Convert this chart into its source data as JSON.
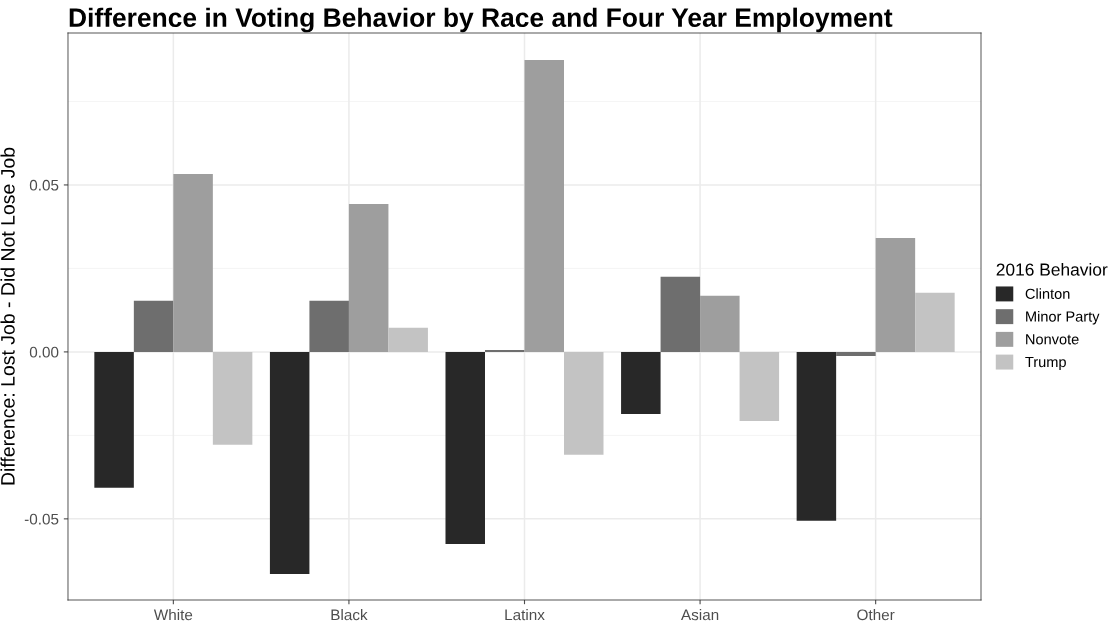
{
  "chart_data": {
    "type": "bar",
    "title": "Difference in Voting Behavior by Race and Four Year Employment",
    "ylabel": "Difference: Lost Job - Did Not Lose Job",
    "legend_title": "2016 Behavior",
    "categories": [
      "White",
      "Black",
      "Latinx",
      "Asian",
      "Other"
    ],
    "series": [
      {
        "name": "Clinton",
        "color": "#282828",
        "values": [
          -0.0407,
          -0.0665,
          -0.0575,
          -0.0186,
          -0.0506
        ]
      },
      {
        "name": "Minor Party",
        "color": "#6e6e6e",
        "values": [
          0.0153,
          0.0153,
          0.0006,
          0.0225,
          -0.0012
        ]
      },
      {
        "name": "Nonvote",
        "color": "#9e9e9e",
        "values": [
          0.0533,
          0.0443,
          0.0874,
          0.0168,
          0.0341
        ]
      },
      {
        "name": "Trump",
        "color": "#c3c3c3",
        "values": [
          -0.0278,
          0.0072,
          -0.0308,
          -0.0207,
          0.0177
        ]
      }
    ],
    "ylim": [
      -0.0743,
      0.0955
    ],
    "yticks": [
      {
        "value": -0.05,
        "label": "-0.05"
      },
      {
        "value": 0,
        "label": "0.00"
      },
      {
        "value": 0.05,
        "label": "0.05"
      }
    ],
    "grid": true,
    "legend": "right"
  }
}
